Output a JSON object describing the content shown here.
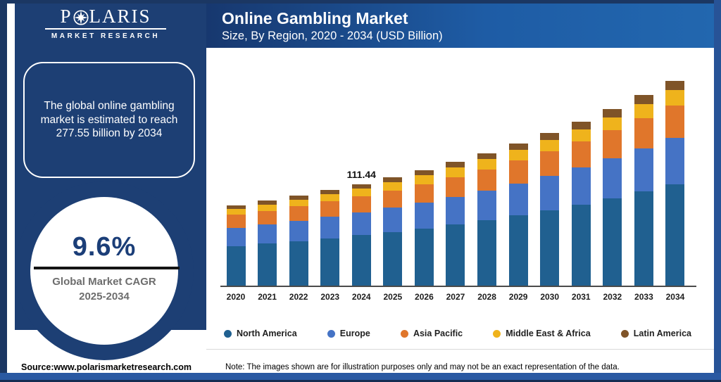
{
  "brand": {
    "wordmark_left": "P",
    "wordmark_right": "LARIS",
    "tagline": "MARKET RESEARCH",
    "star_icon": "compass-star-icon"
  },
  "sidebar": {
    "highlight_text": "The global online gambling market is estimated to reach 277.55 billion by 2034",
    "cagr": {
      "value": "9.6%",
      "label": "Global Market CAGR",
      "period": "2025-2034"
    },
    "source": "Source:www.polarismarketresearch.com"
  },
  "header": {
    "title": "Online Gambling Market",
    "subtitle": "Size, By Region, 2020 - 2034 (USD Billion)"
  },
  "footer_note": "Note: The images shown are for illustration purposes only and may not be an exact representation of the data.",
  "colors": {
    "panel_navy": "#1d3f74",
    "header_gradient_start": "#17386f",
    "header_gradient_end": "#2267af",
    "cagr_value_text": "#1b3e78",
    "cagr_label_text": "#6d6d6d"
  },
  "chart_data": {
    "type": "bar",
    "stacked": true,
    "unit": "USD Billion",
    "title": "Online Gambling Market",
    "subtitle": "Size, By Region, 2020 - 2034 (USD Billion)",
    "xlabel": "",
    "ylabel": "",
    "grid": false,
    "y_axis_ticks_visible": false,
    "legend_position": "bottom",
    "categories": [
      "2020",
      "2021",
      "2022",
      "2023",
      "2024",
      "2025",
      "2026",
      "2027",
      "2028",
      "2029",
      "2030",
      "2031",
      "2032",
      "2033",
      "2034"
    ],
    "series": [
      {
        "name": "North America",
        "color": "#206090",
        "values": [
          38.2,
          41.9,
          45.9,
          50.3,
          55.2,
          60.4,
          66.3,
          72.6,
          79.6,
          87.3,
          95.6,
          104.8,
          114.8,
          125.9,
          137.4
        ]
      },
      {
        "name": "Europe",
        "color": "#4573c5",
        "values": [
          17.4,
          19.0,
          20.9,
          22.9,
          25.1,
          27.5,
          30.1,
          33.0,
          36.2,
          39.7,
          43.5,
          47.6,
          52.2,
          57.2,
          62.4
        ]
      },
      {
        "name": "Asia Pacific",
        "color": "#e0762b",
        "values": [
          12.4,
          13.5,
          14.8,
          16.3,
          17.8,
          19.5,
          21.4,
          23.5,
          25.7,
          28.2,
          30.9,
          33.9,
          37.1,
          40.7,
          44.4
        ]
      },
      {
        "name": "Middle East & Africa",
        "color": "#efb31c",
        "values": [
          5.8,
          6.4,
          7.0,
          7.6,
          8.4,
          9.2,
          10.0,
          11.0,
          12.1,
          13.2,
          14.5,
          15.9,
          17.4,
          19.1,
          20.8
        ]
      },
      {
        "name": "Latin America",
        "color": "#7f5428",
        "values": [
          3.4,
          3.8,
          4.1,
          4.6,
          4.94,
          5.5,
          6.1,
          6.6,
          7.2,
          7.9,
          8.7,
          9.5,
          10.5,
          11.4,
          12.55
        ]
      }
    ],
    "totals": [
      77.2,
      84.6,
      92.7,
      101.7,
      111.44,
      122.1,
      133.9,
      146.7,
      160.8,
      176.3,
      193.2,
      211.7,
      232.0,
      254.3,
      277.55
    ],
    "annotations": [
      {
        "category": "2024",
        "text": "111.44"
      }
    ]
  }
}
